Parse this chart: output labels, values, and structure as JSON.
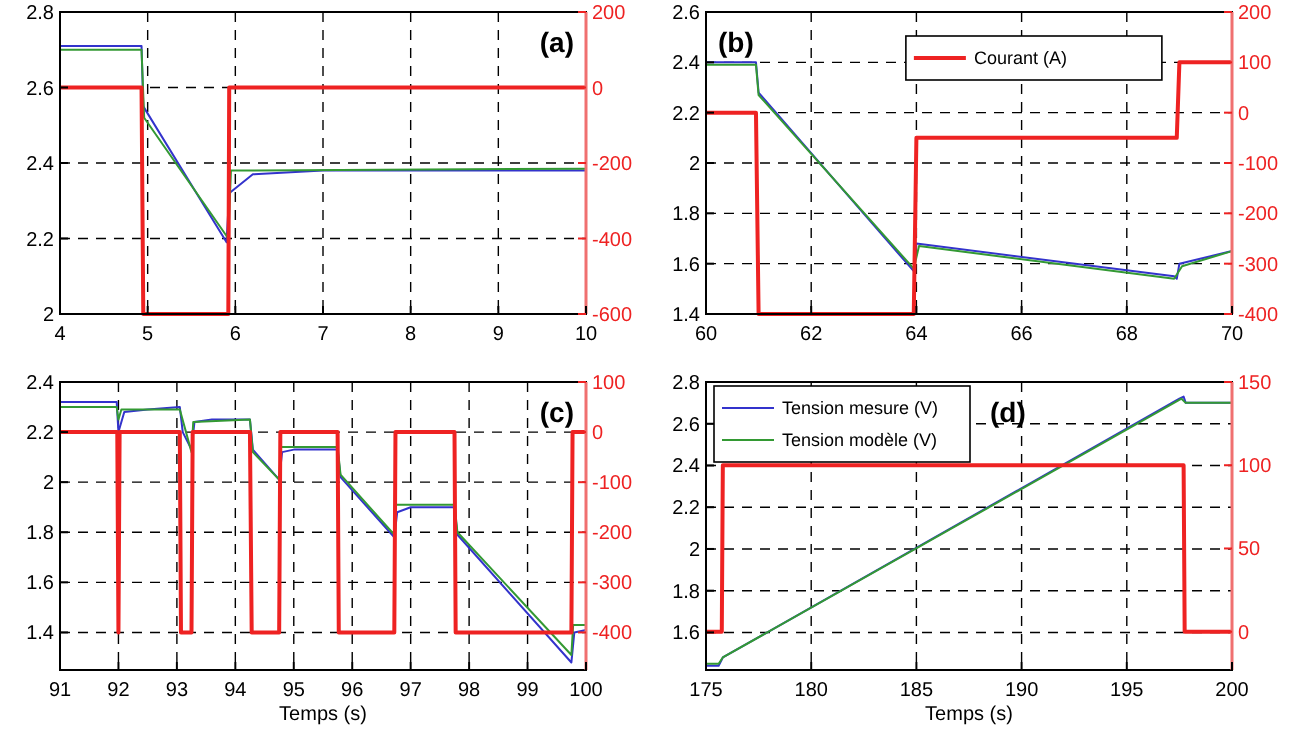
{
  "chart_data": [
    {
      "type": "line",
      "annotations": [
        "(a)"
      ],
      "xlim": [
        4,
        10
      ],
      "xticks": [
        4,
        5,
        6,
        7,
        8,
        9,
        10
      ],
      "ylim": [
        2,
        2.8
      ],
      "yticks": [
        2,
        2.2,
        2.4,
        2.6,
        2.8
      ],
      "y2lim": [
        -600,
        200
      ],
      "y2ticks": [
        -600,
        -400,
        -200,
        0,
        200
      ],
      "grid": true,
      "legend": false,
      "line_style": "solid",
      "marker": "none",
      "series": [
        {
          "color": "#3333cc",
          "x": [
            4,
            4.93,
            4.95,
            5.9,
            5.93,
            6.2,
            7,
            10
          ],
          "values": [
            2.71,
            2.71,
            2.55,
            2.19,
            2.32,
            2.37,
            2.38,
            2.38
          ]
        },
        {
          "color": "#339933",
          "x": [
            4,
            4.93,
            4.96,
            5.92,
            5.95,
            10
          ],
          "values": [
            2.7,
            2.7,
            2.52,
            2.2,
            2.38,
            2.385
          ]
        },
        {
          "color": "#ee2222",
          "axis": "y2",
          "x": [
            4,
            4.93,
            4.95,
            5.92,
            5.93,
            10
          ],
          "values": [
            0,
            0,
            -600,
            -600,
            0,
            0
          ]
        }
      ]
    },
    {
      "type": "line",
      "annotations": [
        "(b)"
      ],
      "xlim": [
        60,
        70
      ],
      "xticks": [
        60,
        62,
        64,
        66,
        68,
        70
      ],
      "ylim": [
        1.4,
        2.6
      ],
      "yticks": [
        1.4,
        1.6,
        1.8,
        2,
        2.2,
        2.4,
        2.6
      ],
      "y2lim": [
        -400,
        200
      ],
      "y2ticks": [
        -400,
        -300,
        -200,
        -100,
        0,
        100,
        200
      ],
      "grid": true,
      "legend": "top",
      "line_style": "solid",
      "marker": "none",
      "series": [
        {
          "color": "#3333cc",
          "x": [
            60,
            60.95,
            61,
            63.95,
            64,
            68.9,
            68.95,
            69,
            70
          ],
          "values": [
            2.4,
            2.4,
            2.28,
            1.57,
            1.68,
            1.55,
            1.54,
            1.6,
            1.65
          ]
        },
        {
          "color": "#339933",
          "x": [
            60,
            60.95,
            61,
            63.95,
            64.05,
            68.9,
            69.05,
            70
          ],
          "values": [
            2.39,
            2.39,
            2.27,
            1.58,
            1.67,
            1.54,
            1.59,
            1.65
          ]
        },
        {
          "name": "Courant (A)",
          "color": "#ee2222",
          "axis": "y2",
          "x": [
            60,
            60.95,
            61,
            63.95,
            64,
            68.95,
            69,
            70
          ],
          "values": [
            0,
            0,
            -400,
            -400,
            -50,
            -50,
            100,
            100
          ]
        }
      ]
    },
    {
      "type": "line",
      "xlabel": "Temps (s)",
      "annotations": [
        "(c)"
      ],
      "xlim": [
        91,
        100
      ],
      "xticks": [
        91,
        92,
        93,
        94,
        95,
        96,
        97,
        98,
        99,
        100
      ],
      "ylim": [
        1.25,
        2.4
      ],
      "yticks": [
        1.4,
        1.6,
        1.8,
        2,
        2.2,
        2.4
      ],
      "y2lim": [
        -475,
        100
      ],
      "y2ticks": [
        -400,
        -300,
        -200,
        -100,
        0,
        100
      ],
      "grid": true,
      "legend": false,
      "line_style": "solid",
      "marker": "none",
      "series": [
        {
          "color": "#3333cc",
          "x": [
            91,
            91.97,
            92,
            92.1,
            92.5,
            93.05,
            93.1,
            93.25,
            93.3,
            93.6,
            94.25,
            94.3,
            94.75,
            94.8,
            95,
            95.75,
            95.8,
            96.72,
            96.77,
            97,
            97.75,
            97.8,
            99.75,
            99.8,
            100
          ],
          "values": [
            2.32,
            2.32,
            2.2,
            2.28,
            2.29,
            2.3,
            2.2,
            2.13,
            2.24,
            2.25,
            2.25,
            2.13,
            2.01,
            2.12,
            2.13,
            2.13,
            2.02,
            1.78,
            1.88,
            1.9,
            1.9,
            1.79,
            1.28,
            1.4,
            1.41
          ]
        },
        {
          "color": "#339933",
          "x": [
            91,
            91.97,
            92,
            92.05,
            93.05,
            93.25,
            93.28,
            94.25,
            94.3,
            94.75,
            94.78,
            95.75,
            95.8,
            96.72,
            96.75,
            97.75,
            97.8,
            99.75,
            99.78,
            100
          ],
          "values": [
            2.3,
            2.3,
            2.25,
            2.29,
            2.29,
            2.12,
            2.24,
            2.25,
            2.12,
            2.01,
            2.14,
            2.14,
            2.03,
            1.79,
            1.91,
            1.91,
            1.8,
            1.31,
            1.43,
            1.43
          ]
        },
        {
          "color": "#ee2222",
          "axis": "y2",
          "x": [
            91,
            91.98,
            92,
            92.02,
            93.05,
            93.07,
            93.25,
            93.27,
            94.25,
            94.28,
            94.75,
            94.77,
            95.75,
            95.77,
            96.72,
            96.74,
            97.75,
            97.77,
            99.75,
            99.77,
            100
          ],
          "values": [
            0,
            0,
            -400,
            0,
            0,
            -400,
            -400,
            0,
            0,
            -400,
            -400,
            0,
            0,
            -400,
            -400,
            0,
            0,
            -400,
            -400,
            0,
            0
          ]
        }
      ]
    },
    {
      "type": "line",
      "xlabel": "Temps (s)",
      "annotations": [
        "(d)"
      ],
      "xlim": [
        175,
        200
      ],
      "xticks": [
        175,
        180,
        185,
        190,
        195,
        200
      ],
      "ylim": [
        1.42,
        2.8
      ],
      "yticks": [
        1.6,
        1.8,
        2,
        2.2,
        2.4,
        2.6,
        2.8
      ],
      "y2lim": [
        -23,
        150
      ],
      "y2ticks": [
        0,
        50,
        100,
        150
      ],
      "grid": true,
      "legend": "top left",
      "line_style": "solid",
      "marker": "none",
      "series": [
        {
          "name": "Tension mesure (V)",
          "color": "#3333cc",
          "x": [
            175,
            175.6,
            175.8,
            197.5,
            197.7,
            197.8,
            200
          ],
          "values": [
            1.44,
            1.44,
            1.48,
            2.72,
            2.73,
            2.7,
            2.7
          ]
        },
        {
          "name": "Tension modèle (V)",
          "color": "#339933",
          "x": [
            175,
            175.6,
            175.8,
            197.6,
            197.8,
            200
          ],
          "values": [
            1.45,
            1.45,
            1.48,
            2.72,
            2.7,
            2.7
          ]
        },
        {
          "color": "#ee2222",
          "axis": "y2",
          "x": [
            175,
            175.75,
            175.8,
            197.7,
            197.75,
            200
          ],
          "values": [
            0,
            0,
            100,
            100,
            0,
            0
          ]
        }
      ]
    }
  ]
}
